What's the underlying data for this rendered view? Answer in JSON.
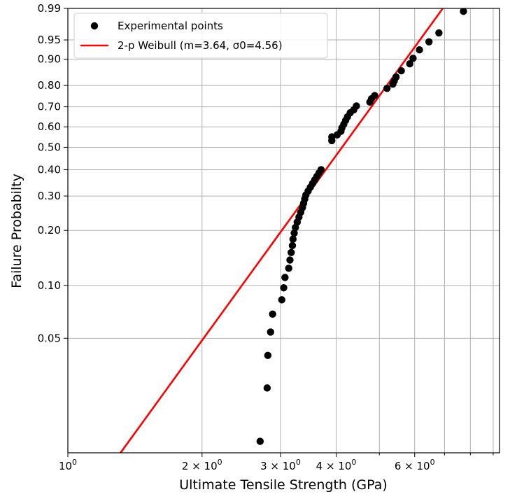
{
  "chart_data": {
    "type": "scatter",
    "xlabel": "Ultimate Tensile Strength (GPa)",
    "ylabel": "Failure Probabilty",
    "x_scale": "log",
    "y_scale": "weibull",
    "xlim": [
      1.0,
      9.3
    ],
    "ylim": [
      0.0107,
      0.99
    ],
    "grid": true,
    "legend_position": "upper-left",
    "x_tick_labels": [
      {
        "value": 1,
        "label": "10"
      },
      {
        "value": 2,
        "label": "2 × 10"
      },
      {
        "value": 3,
        "label": "3 × 10"
      },
      {
        "value": 4,
        "label": "4 × 10"
      },
      {
        "value": 6,
        "label": "6 × 10"
      }
    ],
    "x_tick_exponent": "0",
    "x_minor_ticks": [
      5,
      7,
      8,
      9
    ],
    "y_ticks": [
      0.05,
      0.1,
      0.2,
      0.3,
      0.4,
      0.5,
      0.6,
      0.7,
      0.8,
      0.9,
      0.95,
      0.99
    ],
    "y_tick_labels": [
      "0.05",
      "0.10",
      "0.20",
      "0.30",
      "0.40",
      "0.50",
      "0.60",
      "0.70",
      "0.80",
      "0.90",
      "0.95",
      "0.99"
    ],
    "series": [
      {
        "name": "Experimental points",
        "kind": "scatter",
        "color": "#000000",
        "points": [
          [
            2.7,
            0.0125
          ],
          [
            2.8,
            0.0257
          ],
          [
            2.81,
            0.0398
          ],
          [
            2.85,
            0.0543
          ],
          [
            2.88,
            0.0688
          ],
          [
            3.02,
            0.083
          ],
          [
            3.05,
            0.097
          ],
          [
            3.07,
            0.1109
          ],
          [
            3.13,
            0.1247
          ],
          [
            3.15,
            0.1385
          ],
          [
            3.17,
            0.1522
          ],
          [
            3.19,
            0.166
          ],
          [
            3.2,
            0.1797
          ],
          [
            3.22,
            0.1935
          ],
          [
            3.24,
            0.2072
          ],
          [
            3.27,
            0.221
          ],
          [
            3.3,
            0.2348
          ],
          [
            3.33,
            0.2485
          ],
          [
            3.36,
            0.2623
          ],
          [
            3.38,
            0.2761
          ],
          [
            3.4,
            0.2898
          ],
          [
            3.42,
            0.3036
          ],
          [
            3.46,
            0.3173
          ],
          [
            3.5,
            0.3311
          ],
          [
            3.54,
            0.3449
          ],
          [
            3.58,
            0.3586
          ],
          [
            3.62,
            0.3724
          ],
          [
            3.66,
            0.3861
          ],
          [
            3.7,
            0.3999
          ],
          [
            3.91,
            0.532
          ],
          [
            3.91,
            0.55
          ],
          [
            4.02,
            0.56
          ],
          [
            4.1,
            0.578
          ],
          [
            4.12,
            0.595
          ],
          [
            4.16,
            0.613
          ],
          [
            4.2,
            0.632
          ],
          [
            4.24,
            0.65
          ],
          [
            4.3,
            0.67
          ],
          [
            4.38,
            0.685
          ],
          [
            4.44,
            0.704
          ],
          [
            4.76,
            0.723
          ],
          [
            4.8,
            0.739
          ],
          [
            4.88,
            0.754
          ],
          [
            5.2,
            0.787
          ],
          [
            5.36,
            0.806
          ],
          [
            5.4,
            0.82
          ],
          [
            5.45,
            0.836
          ],
          [
            5.6,
            0.86
          ],
          [
            5.85,
            0.885
          ],
          [
            5.95,
            0.903
          ],
          [
            6.15,
            0.927
          ],
          [
            6.46,
            0.946
          ],
          [
            6.8,
            0.963
          ],
          [
            7.72,
            0.988
          ]
        ]
      },
      {
        "name": "2-p Weibull (m=3.64, σ0=4.56)",
        "kind": "line",
        "color": "#ff0000",
        "shape_m": 3.64,
        "scale_sigma0": 4.56
      }
    ]
  }
}
